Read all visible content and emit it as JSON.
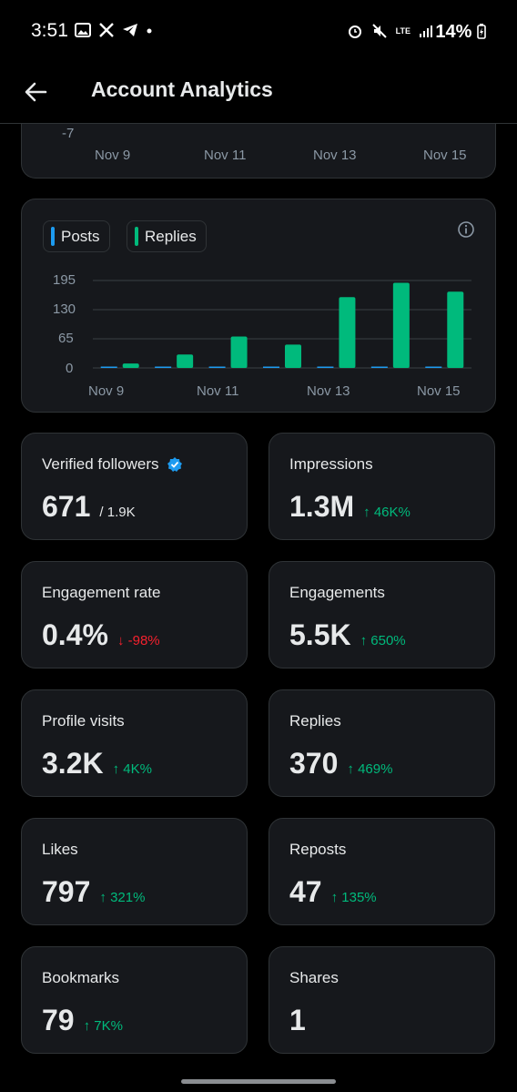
{
  "status_bar": {
    "time": "3:51",
    "battery": "14%",
    "network": "LTE"
  },
  "header": {
    "title": "Account Analytics"
  },
  "top_chart": {
    "y_tick": "-7",
    "x_ticks": [
      "Nov 9",
      "Nov 11",
      "Nov 13",
      "Nov 15"
    ],
    "colors": {
      "blue": "#1d9bf0",
      "red": "#f4212e"
    }
  },
  "chart_data": {
    "type": "bar",
    "categories": [
      "Nov 9",
      "Nov 10",
      "Nov 11",
      "Nov 12",
      "Nov 13",
      "Nov 14",
      "Nov 15"
    ],
    "x_ticks": [
      "Nov 9",
      "Nov 11",
      "Nov 13",
      "Nov 15"
    ],
    "series": [
      {
        "name": "Posts",
        "color": "#1d9bf0",
        "values": [
          1,
          0,
          1,
          1,
          2,
          1,
          1
        ]
      },
      {
        "name": "Replies",
        "color": "#00ba7c",
        "values": [
          10,
          30,
          70,
          52,
          158,
          190,
          170
        ]
      }
    ],
    "y_ticks": [
      "195",
      "130",
      "65",
      "0"
    ],
    "ylim": [
      0,
      195
    ],
    "grid": true,
    "legend": "top-left"
  },
  "metrics": [
    {
      "label": "Verified followers",
      "value": "671",
      "sub": "/ 1.9K",
      "verified": true
    },
    {
      "label": "Impressions",
      "value": "1.3M",
      "change": "46K%",
      "dir": "up"
    },
    {
      "label": "Engagement rate",
      "value": "0.4%",
      "change": "-98%",
      "dir": "down"
    },
    {
      "label": "Engagements",
      "value": "5.5K",
      "change": "650%",
      "dir": "up"
    },
    {
      "label": "Profile visits",
      "value": "3.2K",
      "change": "4K%",
      "dir": "up"
    },
    {
      "label": "Replies",
      "value": "370",
      "change": "469%",
      "dir": "up"
    },
    {
      "label": "Likes",
      "value": "797",
      "change": "321%",
      "dir": "up"
    },
    {
      "label": "Reposts",
      "value": "47",
      "change": "135%",
      "dir": "up"
    },
    {
      "label": "Bookmarks",
      "value": "79",
      "change": "7K%",
      "dir": "up"
    },
    {
      "label": "Shares",
      "value": "1",
      "change": "",
      "dir": ""
    }
  ],
  "arrows": {
    "up": "↑",
    "down": "↓"
  }
}
